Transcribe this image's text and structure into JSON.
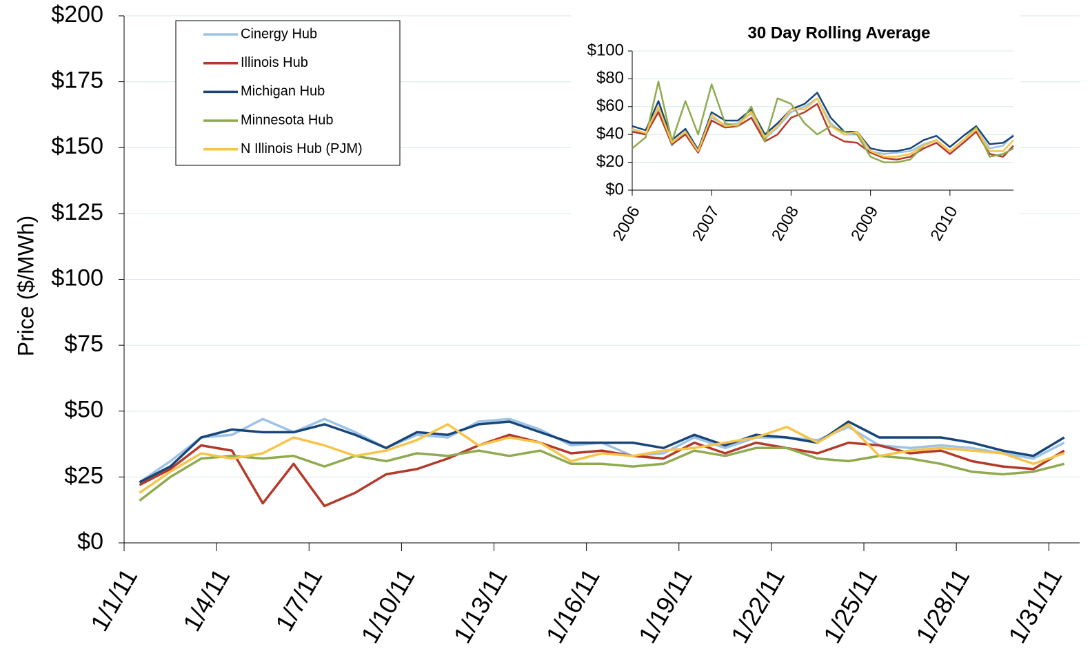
{
  "chart_data": [
    {
      "type": "line",
      "y_label": "Price ($/MWh)",
      "categories": [
        "1/1/11",
        null,
        null,
        "1/4/11",
        null,
        null,
        "1/7/11",
        null,
        null,
        "1/10/11",
        null,
        null,
        "1/13/11",
        null,
        null,
        "1/16/11",
        null,
        null,
        "1/19/11",
        null,
        null,
        "1/22/11",
        null,
        null,
        "1/25/11",
        null,
        null,
        "1/28/11",
        null,
        null,
        "1/31/11"
      ],
      "ylim": [
        0,
        200
      ],
      "yticks": [
        {
          "value": 0,
          "label": "$0"
        },
        {
          "value": 25,
          "label": "$25"
        },
        {
          "value": 50,
          "label": "$50"
        },
        {
          "value": 75,
          "label": "$75"
        },
        {
          "value": 100,
          "label": "$100"
        },
        {
          "value": 125,
          "label": "$125"
        },
        {
          "value": 150,
          "label": "$150"
        },
        {
          "value": 175,
          "label": "$175"
        },
        {
          "value": 200,
          "label": "$200"
        }
      ],
      "grid": true,
      "legend": "top-left",
      "series": [
        {
          "name": "Cinergy Hub",
          "color": "#9dc3e6",
          "values": [
            23,
            31,
            40,
            41,
            47,
            42,
            47,
            42,
            36,
            41,
            40,
            46,
            47,
            43,
            37,
            38,
            33,
            34,
            40,
            36,
            40,
            40,
            39,
            44,
            37,
            36,
            37,
            36,
            34,
            32,
            38
          ]
        },
        {
          "name": "Illinois Hub",
          "color": "#b5392a",
          "values": [
            22,
            28,
            37,
            35,
            15,
            30,
            14,
            19,
            26,
            28,
            32,
            37,
            41,
            38,
            34,
            35,
            33,
            32,
            38,
            34,
            38,
            36,
            34,
            38,
            37,
            34,
            35,
            31,
            29,
            28,
            35
          ]
        },
        {
          "name": "Michigan Hub",
          "color": "#17457a",
          "values": [
            23,
            29,
            40,
            43,
            42,
            42,
            45,
            41,
            36,
            42,
            41,
            45,
            46,
            42,
            38,
            38,
            38,
            36,
            41,
            37,
            41,
            40,
            38,
            46,
            40,
            40,
            40,
            38,
            35,
            33,
            40
          ]
        },
        {
          "name": "Minnesota Hub",
          "color": "#8faa4f",
          "values": [
            16,
            25,
            32,
            33,
            32,
            33,
            29,
            33,
            31,
            34,
            33,
            35,
            33,
            35,
            30,
            30,
            29,
            30,
            35,
            33,
            36,
            36,
            32,
            31,
            33,
            32,
            30,
            27,
            26,
            27,
            30
          ]
        },
        {
          "name": "N Illinois Hub (PJM)",
          "color": "#f6c44a",
          "values": [
            19,
            27,
            34,
            32,
            34,
            40,
            37,
            33,
            35,
            39,
            45,
            37,
            40,
            38,
            31,
            34,
            33,
            35,
            36,
            38,
            40,
            44,
            38,
            45,
            33,
            35,
            36,
            35,
            34,
            30,
            34
          ]
        }
      ]
    },
    {
      "type": "line",
      "title": "30 Day Rolling Average",
      "x": [
        2006,
        2006.17,
        2006.33,
        2006.5,
        2006.67,
        2006.83,
        2007,
        2007.17,
        2007.33,
        2007.5,
        2007.67,
        2007.83,
        2008,
        2008.17,
        2008.33,
        2008.5,
        2008.67,
        2008.83,
        2009,
        2009.17,
        2009.33,
        2009.5,
        2009.67,
        2009.83,
        2010,
        2010.17,
        2010.33,
        2010.5,
        2010.67,
        2010.8
      ],
      "xlim": [
        2006,
        2010.8
      ],
      "xticks": [
        2006,
        2007,
        2008,
        2009,
        2010
      ],
      "ylim": [
        0,
        100
      ],
      "yticks": [
        {
          "value": 0,
          "label": "$0"
        },
        {
          "value": 20,
          "label": "$20"
        },
        {
          "value": 40,
          "label": "$40"
        },
        {
          "value": 60,
          "label": "$60"
        },
        {
          "value": 80,
          "label": "$80"
        },
        {
          "value": 100,
          "label": "$100"
        }
      ],
      "grid": true,
      "series": [
        {
          "color": "#9dc3e6",
          "values": [
            43,
            40,
            58,
            32,
            42,
            28,
            52,
            47,
            48,
            55,
            37,
            45,
            56,
            60,
            66,
            48,
            40,
            40,
            28,
            26,
            27,
            28,
            33,
            36,
            28,
            36,
            44,
            30,
            32,
            40
          ]
        },
        {
          "color": "#b5392a",
          "values": [
            42,
            40,
            56,
            33,
            40,
            27,
            50,
            45,
            46,
            52,
            35,
            40,
            52,
            56,
            62,
            40,
            35,
            34,
            27,
            23,
            22,
            24,
            30,
            34,
            26,
            34,
            42,
            26,
            24,
            32
          ]
        },
        {
          "color": "#17457a",
          "values": [
            46,
            43,
            64,
            36,
            44,
            29,
            56,
            50,
            50,
            58,
            40,
            48,
            58,
            62,
            70,
            52,
            42,
            42,
            30,
            28,
            28,
            30,
            36,
            39,
            31,
            39,
            46,
            33,
            34,
            39
          ]
        },
        {
          "color": "#8faa4f",
          "values": [
            30,
            38,
            78,
            35,
            64,
            40,
            76,
            48,
            46,
            60,
            35,
            66,
            62,
            48,
            40,
            46,
            42,
            40,
            24,
            20,
            20,
            22,
            32,
            36,
            28,
            36,
            45,
            24,
            26,
            30
          ]
        },
        {
          "color": "#f6c44a",
          "values": [
            44,
            41,
            60,
            34,
            42,
            28,
            54,
            46,
            47,
            56,
            38,
            46,
            58,
            58,
            66,
            46,
            40,
            42,
            28,
            24,
            24,
            26,
            32,
            36,
            28,
            36,
            44,
            28,
            28,
            36
          ]
        }
      ]
    }
  ]
}
